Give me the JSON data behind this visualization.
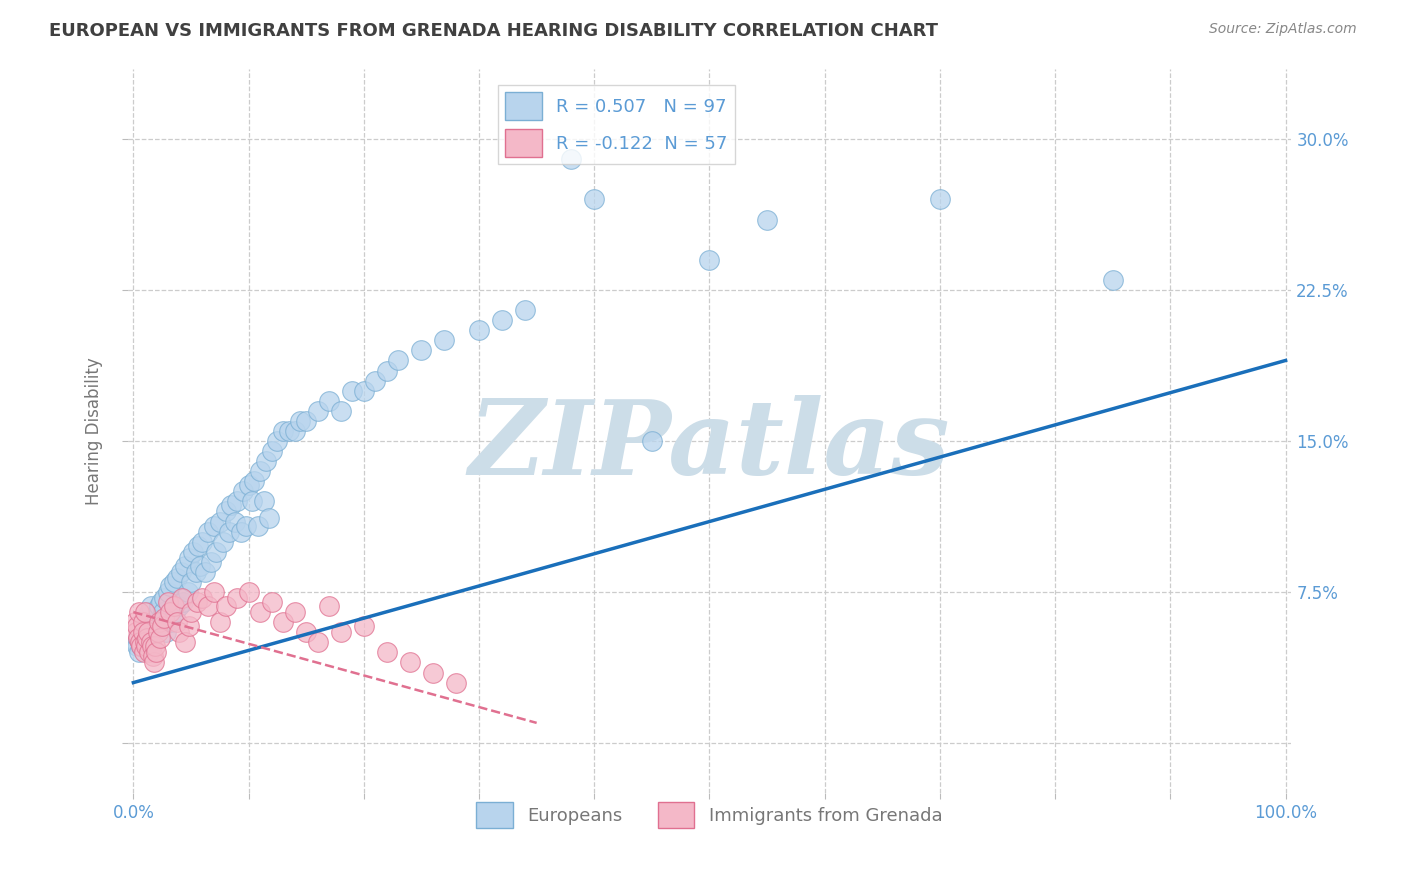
{
  "title": "EUROPEAN VS IMMIGRANTS FROM GRENADA HEARING DISABILITY CORRELATION CHART",
  "source": "Source: ZipAtlas.com",
  "ylabel": "Hearing Disability",
  "xlim": [
    -0.005,
    1.005
  ],
  "ylim": [
    -0.025,
    0.335
  ],
  "yticks": [
    0.0,
    0.075,
    0.15,
    0.225,
    0.3
  ],
  "ytick_labels_right": [
    "",
    "7.5%",
    "15.0%",
    "22.5%",
    "30.0%"
  ],
  "xtick_positions": [
    0.0,
    0.1,
    0.2,
    0.3,
    0.4,
    0.5,
    0.6,
    0.7,
    0.8,
    0.9,
    1.0
  ],
  "xtick_labels": [
    "0.0%",
    "",
    "",
    "",
    "",
    "",
    "",
    "",
    "",
    "",
    "100.0%"
  ],
  "legend_top": [
    {
      "label": "R = 0.507   N = 97",
      "face": "#b8d4ed",
      "edge": "#7bafd4"
    },
    {
      "label": "R = -0.122  N = 57",
      "face": "#f4b8c8",
      "edge": "#e07090"
    }
  ],
  "legend_bottom": [
    {
      "label": "Europeans",
      "face": "#b8d4ed",
      "edge": "#7bafd4"
    },
    {
      "label": "Immigrants from Grenada",
      "face": "#f4b8c8",
      "edge": "#e07090"
    }
  ],
  "blue_x": [
    0.002,
    0.003,
    0.004,
    0.005,
    0.006,
    0.007,
    0.008,
    0.009,
    0.01,
    0.01,
    0.011,
    0.012,
    0.013,
    0.014,
    0.015,
    0.015,
    0.016,
    0.017,
    0.018,
    0.019,
    0.02,
    0.021,
    0.022,
    0.023,
    0.024,
    0.025,
    0.026,
    0.027,
    0.028,
    0.03,
    0.032,
    0.033,
    0.035,
    0.036,
    0.038,
    0.04,
    0.041,
    0.043,
    0.045,
    0.047,
    0.048,
    0.05,
    0.052,
    0.054,
    0.056,
    0.058,
    0.06,
    0.062,
    0.065,
    0.067,
    0.07,
    0.072,
    0.075,
    0.078,
    0.08,
    0.083,
    0.085,
    0.088,
    0.09,
    0.093,
    0.095,
    0.098,
    0.1,
    0.103,
    0.105,
    0.108,
    0.11,
    0.113,
    0.115,
    0.118,
    0.12,
    0.125,
    0.13,
    0.135,
    0.14,
    0.145,
    0.15,
    0.16,
    0.17,
    0.18,
    0.19,
    0.2,
    0.21,
    0.22,
    0.23,
    0.25,
    0.27,
    0.3,
    0.32,
    0.34,
    0.38,
    0.4,
    0.45,
    0.5,
    0.55,
    0.7,
    0.85
  ],
  "blue_y": [
    0.05,
    0.048,
    0.052,
    0.045,
    0.05,
    0.048,
    0.053,
    0.052,
    0.055,
    0.058,
    0.06,
    0.063,
    0.05,
    0.065,
    0.068,
    0.048,
    0.058,
    0.053,
    0.06,
    0.055,
    0.062,
    0.065,
    0.068,
    0.058,
    0.07,
    0.06,
    0.065,
    0.072,
    0.055,
    0.075,
    0.078,
    0.06,
    0.08,
    0.065,
    0.082,
    0.068,
    0.085,
    0.07,
    0.088,
    0.075,
    0.092,
    0.08,
    0.095,
    0.085,
    0.098,
    0.088,
    0.1,
    0.085,
    0.105,
    0.09,
    0.108,
    0.095,
    0.11,
    0.1,
    0.115,
    0.105,
    0.118,
    0.11,
    0.12,
    0.105,
    0.125,
    0.108,
    0.128,
    0.12,
    0.13,
    0.108,
    0.135,
    0.12,
    0.14,
    0.112,
    0.145,
    0.15,
    0.155,
    0.155,
    0.155,
    0.16,
    0.16,
    0.165,
    0.17,
    0.165,
    0.175,
    0.175,
    0.18,
    0.185,
    0.19,
    0.195,
    0.2,
    0.205,
    0.21,
    0.215,
    0.29,
    0.27,
    0.15,
    0.24,
    0.26,
    0.27,
    0.23
  ],
  "pink_x": [
    0.001,
    0.002,
    0.003,
    0.004,
    0.005,
    0.006,
    0.007,
    0.008,
    0.008,
    0.009,
    0.01,
    0.01,
    0.011,
    0.012,
    0.013,
    0.014,
    0.015,
    0.016,
    0.017,
    0.018,
    0.019,
    0.02,
    0.021,
    0.022,
    0.023,
    0.025,
    0.027,
    0.03,
    0.032,
    0.035,
    0.038,
    0.04,
    0.042,
    0.045,
    0.048,
    0.05,
    0.055,
    0.06,
    0.065,
    0.07,
    0.075,
    0.08,
    0.09,
    0.1,
    0.11,
    0.12,
    0.13,
    0.14,
    0.15,
    0.16,
    0.17,
    0.18,
    0.2,
    0.22,
    0.24,
    0.26,
    0.28
  ],
  "pink_y": [
    0.06,
    0.055,
    0.058,
    0.052,
    0.065,
    0.05,
    0.048,
    0.06,
    0.055,
    0.045,
    0.05,
    0.065,
    0.048,
    0.052,
    0.055,
    0.045,
    0.05,
    0.048,
    0.043,
    0.04,
    0.048,
    0.045,
    0.055,
    0.06,
    0.052,
    0.058,
    0.062,
    0.07,
    0.065,
    0.068,
    0.06,
    0.055,
    0.072,
    0.05,
    0.058,
    0.065,
    0.07,
    0.072,
    0.068,
    0.075,
    0.06,
    0.068,
    0.072,
    0.075,
    0.065,
    0.07,
    0.06,
    0.065,
    0.055,
    0.05,
    0.068,
    0.055,
    0.058,
    0.045,
    0.04,
    0.035,
    0.03
  ],
  "blue_line_x": [
    0.0,
    1.0
  ],
  "blue_line_y": [
    0.03,
    0.19
  ],
  "pink_line_x": [
    0.0,
    0.35
  ],
  "pink_line_y": [
    0.065,
    0.01
  ],
  "blue_scatter_color": "#b8d4ed",
  "blue_scatter_edge": "#7bafd4",
  "blue_scatter_alpha": 0.75,
  "pink_scatter_color": "#f4b8c8",
  "pink_scatter_edge": "#e07090",
  "pink_scatter_alpha": 0.75,
  "blue_line_color": "#1a6fba",
  "pink_line_color": "#e07090",
  "grid_color": "#cccccc",
  "bg_color": "#ffffff",
  "title_color": "#404040",
  "right_label_color": "#5b9bd5",
  "bottom_label_color": "#777777",
  "watermark": "ZIPatlas",
  "watermark_color": "#ccdde8",
  "title_fontsize": 13,
  "axis_fontsize": 12
}
